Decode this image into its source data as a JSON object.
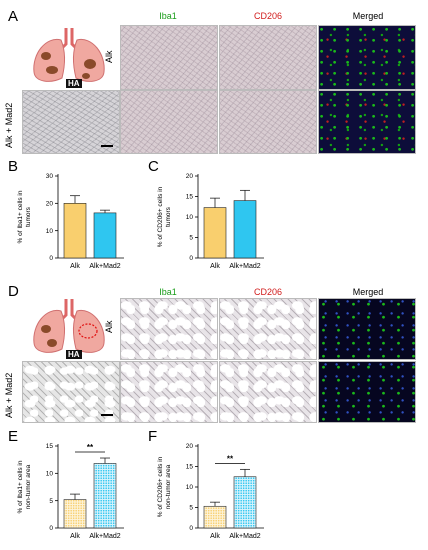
{
  "panels": {
    "A": "A",
    "B": "B",
    "C": "C",
    "D": "D",
    "E": "E",
    "F": "F"
  },
  "headers": {
    "iba1": "Iba1",
    "cd206": "CD206",
    "merged": "Merged"
  },
  "rows": {
    "alk": "Alk",
    "alk_mad2": "Alk + Mad2"
  },
  "ha_label": "HA",
  "colors": {
    "alk_bar": "#f9cf6e",
    "mad2_bar": "#2fc6f0",
    "iba1_text": "#1a9d1a",
    "cd206_text": "#d11b1b"
  },
  "chart_data": [
    {
      "id": "B",
      "type": "bar",
      "categories": [
        "Alk",
        "Alk+Mad2"
      ],
      "values": [
        20,
        16.5
      ],
      "errors": [
        2.8,
        1.0
      ],
      "ylabel": "% of Iba1+ cells in tumors",
      "ylim": [
        0,
        30
      ],
      "yticks": [
        "0",
        "10",
        "20",
        "30"
      ],
      "pattern": "solid"
    },
    {
      "id": "C",
      "type": "bar",
      "categories": [
        "Alk",
        "Alk+Mad2"
      ],
      "values": [
        12.3,
        14
      ],
      "errors": [
        2.3,
        2.5
      ],
      "ylabel": "% of CD206+ cells in tumors",
      "ylim": [
        0,
        20
      ],
      "yticks": [
        "0",
        "5",
        "10",
        "15",
        "20"
      ],
      "pattern": "solid"
    },
    {
      "id": "E",
      "type": "bar",
      "categories": [
        "Alk",
        "Alk+Mad2"
      ],
      "values": [
        5.2,
        11.8
      ],
      "errors": [
        1.0,
        1.0
      ],
      "ylabel": "% of Iba1+ cells in non-tumor area",
      "ylim": [
        0,
        15
      ],
      "yticks": [
        "0",
        "5",
        "10",
        "15"
      ],
      "significance": "**",
      "pattern": "dotted"
    },
    {
      "id": "F",
      "type": "bar",
      "categories": [
        "Alk",
        "Alk+Mad2"
      ],
      "values": [
        5.3,
        12.5
      ],
      "errors": [
        1.0,
        1.8
      ],
      "ylabel": "% of CD206+ cells in non-tumor area",
      "ylim": [
        0,
        20
      ],
      "yticks": [
        "0",
        "5",
        "10",
        "15",
        "20"
      ],
      "significance": "**",
      "pattern": "dotted"
    }
  ]
}
